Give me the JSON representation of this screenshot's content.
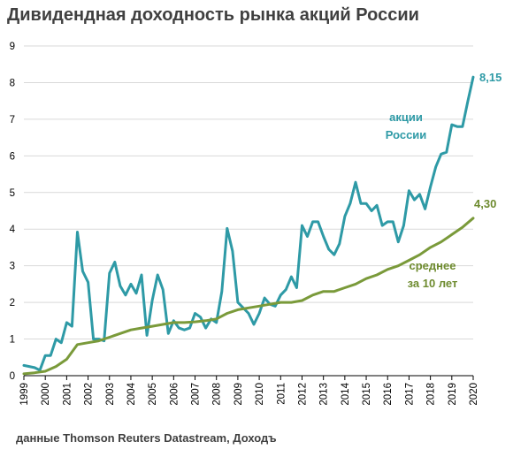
{
  "title": "Дивидендная доходность рынка акций России",
  "source": "данные Thomson Reuters Datastream, Доходъ",
  "chart_data": {
    "type": "line",
    "title": "Дивидендная доходность рынка акций России",
    "ylim": [
      0,
      9
    ],
    "y_ticks": [
      "0",
      "1",
      "2",
      "3",
      "4",
      "5",
      "6",
      "7",
      "8",
      "9"
    ],
    "x_ticks": [
      "1999",
      "2000",
      "2001",
      "2002",
      "2003",
      "2004",
      "2005",
      "2006",
      "2007",
      "2008",
      "2009",
      "2010",
      "2011",
      "2012",
      "2013",
      "2014",
      "2015",
      "2016",
      "2017",
      "2018",
      "2019",
      "2020"
    ],
    "grid": true,
    "colors": {
      "russia": "#2e9aa6",
      "average": "#7a9a3a"
    },
    "series": [
      {
        "name": "акции России",
        "label_lines": [
          "акции",
          "России"
        ],
        "end_label": "8,15",
        "x": [
          1999.0,
          1999.25,
          1999.5,
          1999.75,
          2000.0,
          2000.25,
          2000.5,
          2000.75,
          2001.0,
          2001.25,
          2001.5,
          2001.75,
          2002.0,
          2002.25,
          2002.5,
          2002.75,
          2003.0,
          2003.25,
          2003.5,
          2003.75,
          2004.0,
          2004.25,
          2004.5,
          2004.75,
          2005.0,
          2005.25,
          2005.5,
          2005.75,
          2006.0,
          2006.25,
          2006.5,
          2006.75,
          2007.0,
          2007.25,
          2007.5,
          2007.75,
          2008.0,
          2008.25,
          2008.5,
          2008.75,
          2009.0,
          2009.25,
          2009.5,
          2009.75,
          2010.0,
          2010.25,
          2010.5,
          2010.75,
          2011.0,
          2011.25,
          2011.5,
          2011.75,
          2012.0,
          2012.25,
          2012.5,
          2012.75,
          2013.0,
          2013.25,
          2013.5,
          2013.75,
          2014.0,
          2014.25,
          2014.5,
          2014.75,
          2015.0,
          2015.25,
          2015.5,
          2015.75,
          2016.0,
          2016.25,
          2016.5,
          2016.75,
          2017.0,
          2017.25,
          2017.5,
          2017.75,
          2018.0,
          2018.25,
          2018.5,
          2018.75,
          2019.0,
          2019.25,
          2019.5,
          2019.75,
          2020.0
        ],
        "values": [
          0.28,
          0.25,
          0.22,
          0.15,
          0.55,
          0.55,
          1.0,
          0.9,
          1.45,
          1.35,
          3.92,
          2.85,
          2.55,
          1.0,
          1.0,
          0.95,
          2.8,
          3.1,
          2.45,
          2.2,
          2.5,
          2.25,
          2.75,
          1.1,
          2.05,
          2.75,
          2.35,
          1.15,
          1.5,
          1.3,
          1.25,
          1.3,
          1.7,
          1.6,
          1.3,
          1.55,
          1.45,
          2.3,
          4.02,
          3.4,
          2.0,
          1.85,
          1.7,
          1.4,
          1.7,
          2.12,
          1.95,
          1.9,
          2.2,
          2.35,
          2.7,
          2.4,
          4.1,
          3.8,
          4.2,
          4.2,
          3.8,
          3.45,
          3.3,
          3.6,
          4.35,
          4.7,
          5.28,
          4.7,
          4.7,
          4.5,
          4.65,
          4.1,
          4.2,
          4.2,
          3.65,
          4.1,
          5.05,
          4.8,
          4.95,
          4.55,
          5.15,
          5.7,
          6.05,
          6.1,
          6.85,
          6.8,
          6.8,
          7.5,
          8.15
        ]
      },
      {
        "name": "среднее за 10 лет",
        "label_lines": [
          "среднее",
          "за 10 лет"
        ],
        "end_label": "4,30",
        "x": [
          1999.0,
          1999.5,
          2000.0,
          2000.5,
          2001.0,
          2001.5,
          2002.0,
          2002.5,
          2003.0,
          2003.5,
          2004.0,
          2004.5,
          2005.0,
          2005.5,
          2006.0,
          2006.5,
          2007.0,
          2007.5,
          2008.0,
          2008.5,
          2009.0,
          2009.5,
          2010.0,
          2010.5,
          2011.0,
          2011.5,
          2012.0,
          2012.5,
          2013.0,
          2013.5,
          2014.0,
          2014.5,
          2015.0,
          2015.5,
          2016.0,
          2016.5,
          2017.0,
          2017.5,
          2018.0,
          2018.5,
          2019.0,
          2019.5,
          2020.0
        ],
        "values": [
          0.05,
          0.08,
          0.12,
          0.25,
          0.45,
          0.85,
          0.9,
          0.95,
          1.05,
          1.15,
          1.25,
          1.3,
          1.35,
          1.4,
          1.45,
          1.45,
          1.47,
          1.5,
          1.55,
          1.7,
          1.8,
          1.85,
          1.9,
          1.95,
          2.0,
          2.0,
          2.05,
          2.2,
          2.3,
          2.3,
          2.4,
          2.5,
          2.65,
          2.75,
          2.9,
          3.0,
          3.15,
          3.3,
          3.5,
          3.65,
          3.85,
          4.05,
          4.3
        ]
      }
    ]
  }
}
